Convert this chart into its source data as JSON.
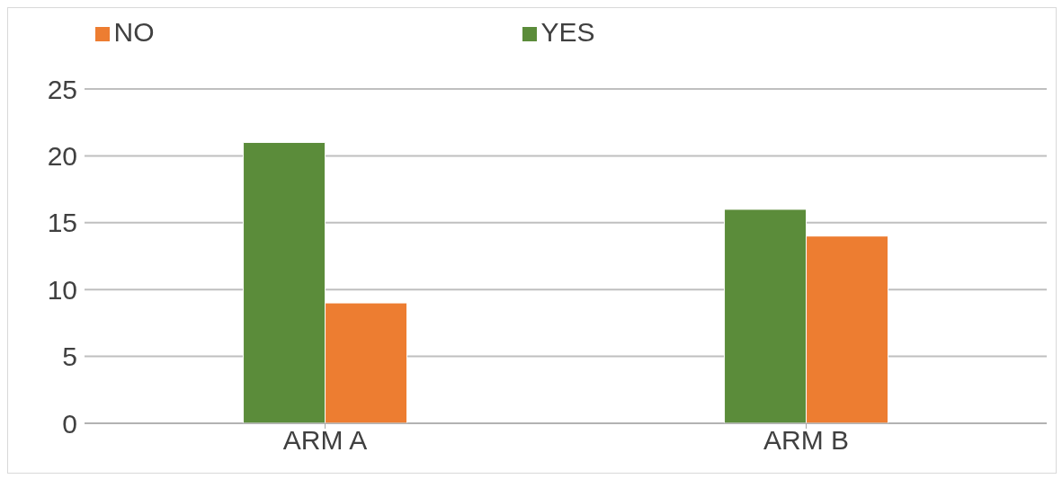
{
  "chart_data": {
    "type": "bar",
    "categories": [
      "ARM A",
      "ARM B"
    ],
    "series": [
      {
        "name": "YES",
        "color": "#5b8c3a",
        "values": [
          21,
          16
        ]
      },
      {
        "name": "NO",
        "color": "#ed7d31",
        "values": [
          9,
          14
        ]
      }
    ],
    "ylim": [
      0,
      25
    ],
    "yticks": [
      0,
      5,
      10,
      15,
      20,
      25
    ],
    "grid": "y",
    "legend": "top"
  }
}
